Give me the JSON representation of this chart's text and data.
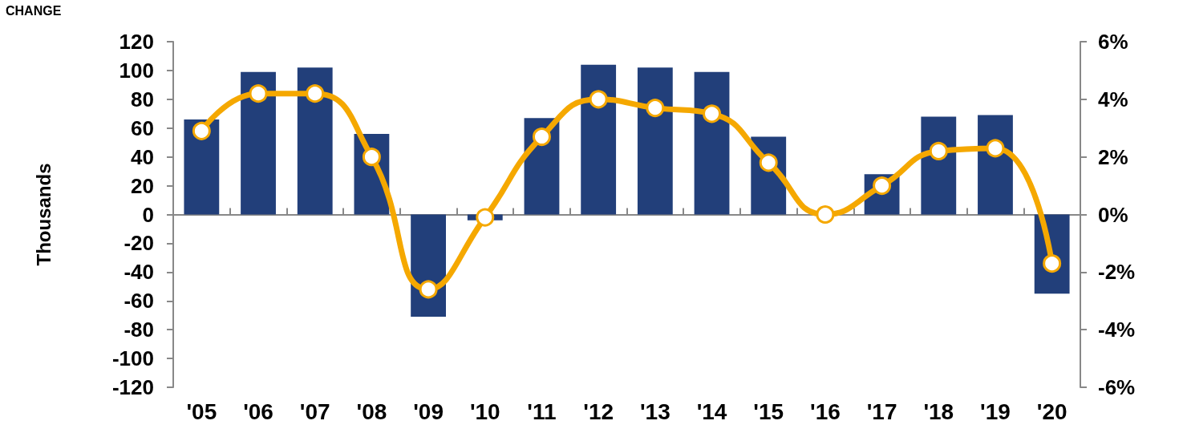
{
  "chart_data": {
    "type": "bar",
    "title": "CHANGE",
    "ylabel": "Thousands",
    "categories": [
      "'05",
      "'06",
      "'07",
      "'08",
      "'09",
      "'10",
      "'11",
      "'12",
      "'13",
      "'14",
      "'15",
      "'16",
      "'17",
      "'18",
      "'19",
      "'20"
    ],
    "series": [
      {
        "color": "#223f7a",
        "values": [
          66,
          99,
          102,
          56,
          -71,
          -4,
          67,
          104,
          102,
          99,
          54,
          0,
          28,
          68,
          69,
          -55
        ]
      },
      {
        "type": "line",
        "axis": "y2",
        "color": "#f5a800",
        "marker": "circle",
        "values": [
          2.9,
          4.2,
          4.2,
          2.0,
          -2.6,
          -0.1,
          2.7,
          4.0,
          3.7,
          3.5,
          1.8,
          0,
          1.0,
          2.2,
          2.3,
          -1.7
        ]
      }
    ],
    "ylim": [
      -120,
      120
    ],
    "yticks": [
      -120,
      -100,
      -80,
      -60,
      -40,
      -20,
      0,
      20,
      40,
      60,
      80,
      100,
      120
    ],
    "y2lim": [
      -6,
      6
    ],
    "y2ticks": [
      {
        "value": -6,
        "label": "-6%"
      },
      {
        "value": -4,
        "label": "-4%"
      },
      {
        "value": -2,
        "label": "-2%"
      },
      {
        "value": 0,
        "label": "0%"
      },
      {
        "value": 2,
        "label": "2%"
      },
      {
        "value": 4,
        "label": "4%"
      },
      {
        "value": 6,
        "label": "6%"
      }
    ]
  }
}
